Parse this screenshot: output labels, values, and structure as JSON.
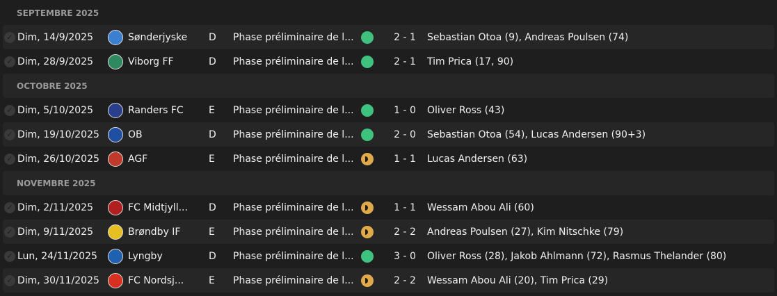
{
  "colors": {
    "win": "#3fc27e",
    "draw": "#e0aa4a"
  },
  "sections": [
    {
      "title": "SEPTEMBRE 2025",
      "matches": [
        {
          "date": "Dim, 14/9/2025",
          "team": "Sønderjyske",
          "crest": "#3a7fd0",
          "venue": "D",
          "competition": "Phase préliminaire de l...",
          "result": "win",
          "score": "2 - 1",
          "scorers": "Sebastian Otoa (9), Andreas Poulsen (74)"
        },
        {
          "date": "Dim, 28/9/2025",
          "team": "Viborg FF",
          "crest": "#2e8a5e",
          "venue": "D",
          "competition": "Phase préliminaire de l...",
          "result": "win",
          "score": "2 - 1",
          "scorers": "Tim Prica (17, 90)"
        }
      ]
    },
    {
      "title": "OCTOBRE 2025",
      "matches": [
        {
          "date": "Dim, 5/10/2025",
          "team": "Randers FC",
          "crest": "#2a3f8a",
          "venue": "E",
          "competition": "Phase préliminaire de l...",
          "result": "win",
          "score": "1 - 0",
          "scorers": "Oliver Ross (43)"
        },
        {
          "date": "Dim, 19/10/2025",
          "team": "OB",
          "crest": "#1f4fa0",
          "venue": "D",
          "competition": "Phase préliminaire de l...",
          "result": "win",
          "score": "2 - 0",
          "scorers": "Sebastian Otoa (54), Lucas Andersen (90+3)"
        },
        {
          "date": "Dim, 26/10/2025",
          "team": "AGF",
          "crest": "#c0392b",
          "venue": "E",
          "competition": "Phase préliminaire de l...",
          "result": "draw",
          "score": "1 - 1",
          "scorers": "Lucas Andersen (63)"
        }
      ]
    },
    {
      "title": "NOVEMBRE 2025",
      "matches": [
        {
          "date": "Dim, 2/11/2025",
          "team": "FC Midtjyll...",
          "crest": "#b02020",
          "venue": "D",
          "competition": "Phase préliminaire de l...",
          "result": "draw",
          "score": "1 - 1",
          "scorers": "Wessam Abou Ali (60)"
        },
        {
          "date": "Dim, 9/11/2025",
          "team": "Brøndby IF",
          "crest": "#e6c020",
          "venue": "E",
          "competition": "Phase préliminaire de l...",
          "result": "draw",
          "score": "2 - 2",
          "scorers": "Andreas Poulsen (27), Kim Nitschke (79)"
        },
        {
          "date": "Lun, 24/11/2025",
          "team": "Lyngby",
          "crest": "#2060b0",
          "venue": "D",
          "competition": "Phase préliminaire de l...",
          "result": "win",
          "score": "3 - 0",
          "scorers": "Oliver Ross (28), Jakob Ahlmann (72), Rasmus Thelander (80)"
        },
        {
          "date": "Dim, 30/11/2025",
          "team": "FC Nordsj...",
          "crest": "#d83020",
          "venue": "E",
          "competition": "Phase préliminaire de l...",
          "result": "draw",
          "score": "2 - 2",
          "scorers": "Wessam Abou Ali (20), Tim Prica (29)"
        }
      ]
    }
  ]
}
